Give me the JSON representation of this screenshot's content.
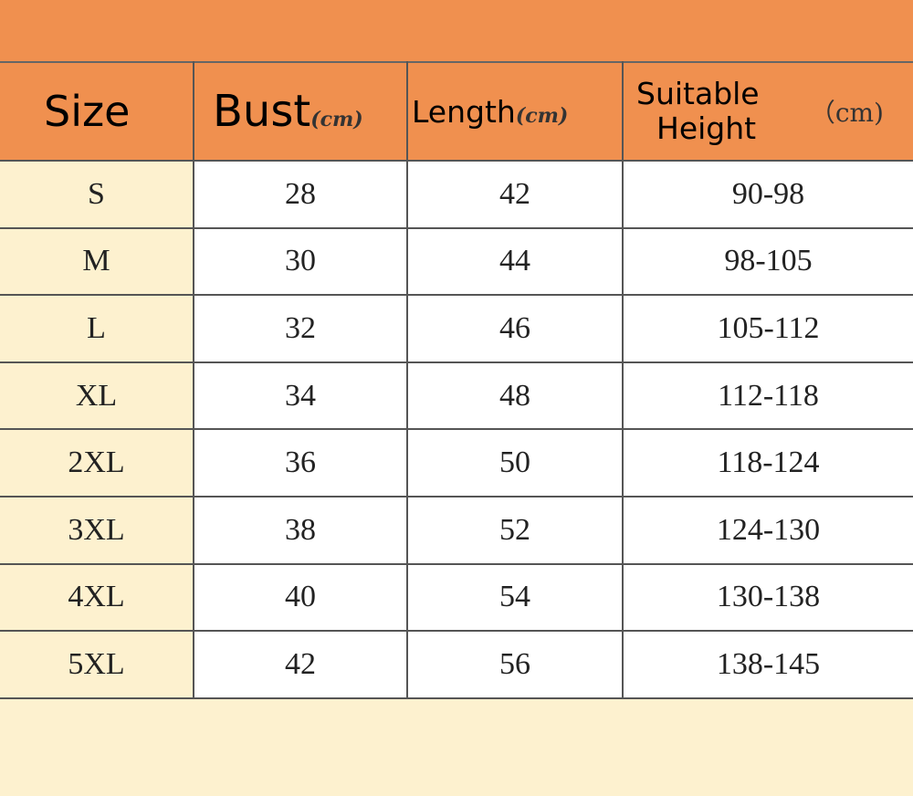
{
  "colors": {
    "header": "#f0904f",
    "size_column": "#fdf1cf",
    "cells": "#ffffff"
  },
  "headers": {
    "size": "Size",
    "bust": "Bust",
    "bust_unit": "(cm)",
    "length": "Length",
    "length_unit": "(cm)",
    "height_line1": "Suitable",
    "height_line2": "Height",
    "height_unit": "（cm)"
  },
  "rows": [
    {
      "size": "S",
      "bust": "28",
      "length": "42",
      "height": "90-98"
    },
    {
      "size": "M",
      "bust": "30",
      "length": "44",
      "height": "98-105"
    },
    {
      "size": "L",
      "bust": "32",
      "length": "46",
      "height": "105-112"
    },
    {
      "size": "XL",
      "bust": "34",
      "length": "48",
      "height": "112-118"
    },
    {
      "size": "2XL",
      "bust": "36",
      "length": "50",
      "height": "118-124"
    },
    {
      "size": "3XL",
      "bust": "38",
      "length": "52",
      "height": "124-130"
    },
    {
      "size": "4XL",
      "bust": "40",
      "length": "54",
      "height": "130-138"
    },
    {
      "size": "5XL",
      "bust": "42",
      "length": "56",
      "height": "138-145"
    }
  ]
}
